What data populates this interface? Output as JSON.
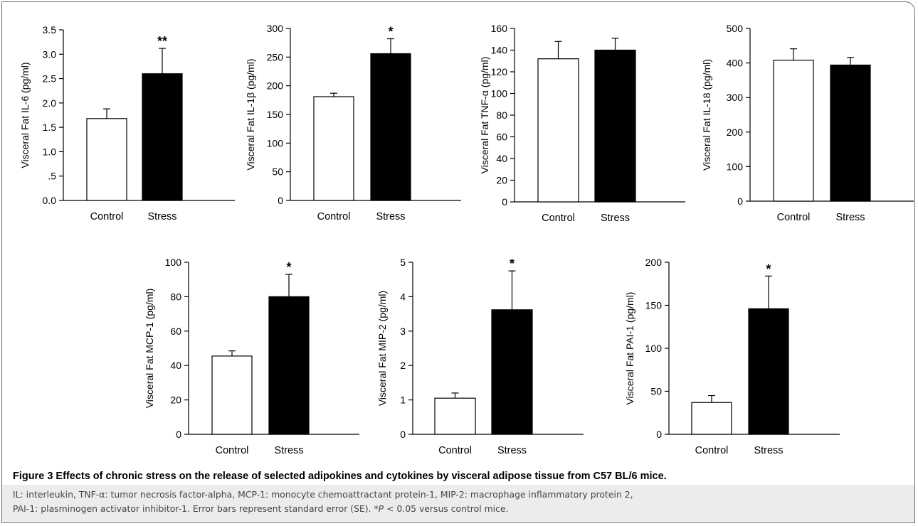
{
  "chart_data": [
    {
      "type": "bar",
      "ylabel": "Visceral Fat IL-6 (pg/ml)",
      "yticks": [
        "0.0",
        ".5",
        "1.0",
        "1.5",
        "2.0",
        "2.5",
        "3.0",
        "3.5"
      ],
      "ylim": [
        0,
        3.5
      ],
      "categories": [
        "Control",
        "Stress"
      ],
      "values": [
        1.68,
        2.6
      ],
      "errors": [
        0.2,
        0.52
      ],
      "colors": [
        "#ffffff",
        "#000000"
      ],
      "significance": [
        "",
        "**"
      ]
    },
    {
      "type": "bar",
      "ylabel": "Visceral Fat IL-1β (pg/ml)",
      "yticks": [
        "0",
        "50",
        "100",
        "150",
        "200",
        "250",
        "300"
      ],
      "ylim": [
        0,
        300
      ],
      "categories": [
        "Control",
        "Stress"
      ],
      "values": [
        181,
        256
      ],
      "errors": [
        6,
        26
      ],
      "colors": [
        "#ffffff",
        "#000000"
      ],
      "significance": [
        "",
        "*"
      ]
    },
    {
      "type": "bar",
      "ylabel": "Visceral Fat TNF-α (pg/ml)",
      "yticks": [
        "0",
        "20",
        "40",
        "60",
        "80",
        "100",
        "120",
        "140",
        "160"
      ],
      "ylim": [
        0,
        160
      ],
      "categories": [
        "Control",
        "Stress"
      ],
      "values": [
        132,
        140
      ],
      "errors": [
        16,
        11
      ],
      "colors": [
        "#ffffff",
        "#000000"
      ],
      "significance": [
        "",
        ""
      ]
    },
    {
      "type": "bar",
      "ylabel": "Visceral Fat IL-18 (pg/ml)",
      "yticks": [
        "0",
        "100",
        "200",
        "300",
        "400",
        "500"
      ],
      "ylim": [
        0,
        500
      ],
      "categories": [
        "Control",
        "Stress"
      ],
      "values": [
        408,
        394
      ],
      "errors": [
        33,
        22
      ],
      "colors": [
        "#ffffff",
        "#000000"
      ],
      "significance": [
        "",
        ""
      ]
    },
    {
      "type": "bar",
      "ylabel": "Visceral Fat MCP-1 (pg/ml)",
      "yticks": [
        "0",
        "20",
        "40",
        "60",
        "80",
        "100"
      ],
      "ylim": [
        0,
        100
      ],
      "categories": [
        "Control",
        "Stress"
      ],
      "values": [
        45.5,
        80
      ],
      "errors": [
        3,
        13
      ],
      "colors": [
        "#ffffff",
        "#000000"
      ],
      "significance": [
        "",
        "*"
      ]
    },
    {
      "type": "bar",
      "ylabel": "Visceral Fat MIP-2 (pg/ml)",
      "yticks": [
        "0",
        "1",
        "2",
        "3",
        "4",
        "5"
      ],
      "ylim": [
        0,
        5
      ],
      "categories": [
        "Control",
        "Stress"
      ],
      "values": [
        1.05,
        3.62
      ],
      "errors": [
        0.15,
        1.13
      ],
      "colors": [
        "#ffffff",
        "#000000"
      ],
      "significance": [
        "",
        "*"
      ]
    },
    {
      "type": "bar",
      "ylabel": "Visceral Fat PAI-1 (pg/ml)",
      "yticks": [
        "0",
        "50",
        "100",
        "150",
        "200"
      ],
      "ylim": [
        0,
        200
      ],
      "categories": [
        "Control",
        "Stress"
      ],
      "values": [
        37,
        146
      ],
      "errors": [
        8,
        38
      ],
      "colors": [
        "#ffffff",
        "#000000"
      ],
      "significance": [
        "",
        "*"
      ]
    }
  ],
  "caption": {
    "title": "Figure 3 Effects of chronic stress on the release of selected adipokines and cytokines by visceral adipose tissue from C57 BL/6 mice.",
    "line1": "IL: interleukin, TNF-α: tumor necrosis factor-alpha, MCP-1: monocyte chemoattractant protein-1, MIP-2: macrophage inflammatory protein 2,",
    "line2_pre": "PAI-1: plasminogen activator inhibitor-1. Error bars represent standard error (SE). *",
    "line2_p": "P",
    "line2_post": " < 0.05 versus control mice."
  }
}
